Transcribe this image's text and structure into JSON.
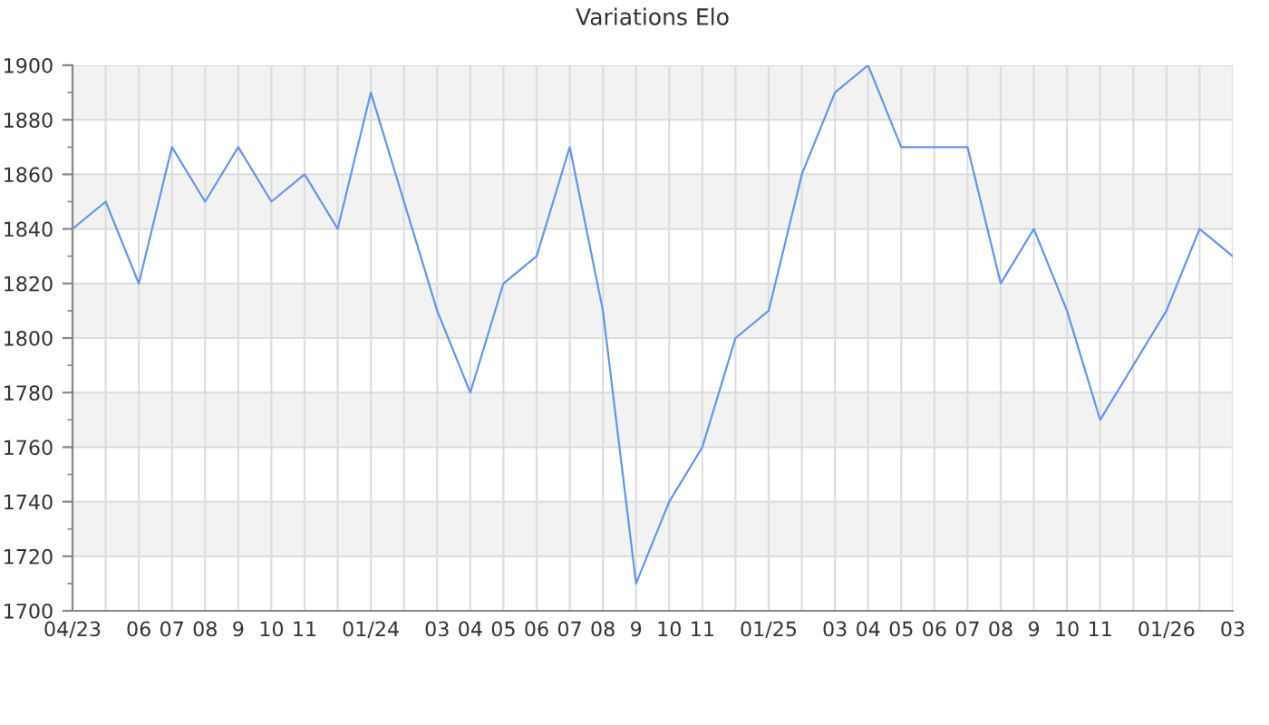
{
  "chart_data": {
    "type": "line",
    "title": "Variations Elo",
    "categories": [
      "04/23",
      null,
      "06",
      "07",
      "08",
      "9",
      "10",
      "11",
      null,
      "01/24",
      null,
      "03",
      "04",
      "05",
      "06",
      "07",
      "08",
      "9",
      "10",
      "11",
      null,
      "01/25",
      null,
      "03",
      "04",
      "05",
      "06",
      "07",
      "08",
      "9",
      "10",
      "11",
      null,
      "01/26",
      null,
      "03"
    ],
    "series": [
      {
        "color": "#6495ed",
        "values": [
          1840,
          1850,
          1820,
          1870,
          1850,
          1870,
          1850,
          1860,
          1840,
          1890,
          1850,
          1810,
          1780,
          1820,
          1830,
          1870,
          1810,
          1710,
          1740,
          1760,
          1800,
          1810,
          1860,
          1890,
          1900,
          1870,
          1870,
          1870,
          1820,
          1840,
          1810,
          1770,
          1790,
          1810,
          1840,
          1830
        ]
      }
    ],
    "ylim": [
      1700,
      1900
    ],
    "yticks": [
      1700,
      1720,
      1740,
      1760,
      1780,
      1800,
      1820,
      1840,
      1860,
      1880,
      1900
    ],
    "grid": true,
    "legend": false,
    "marker": "none",
    "line_style": "solid"
  }
}
